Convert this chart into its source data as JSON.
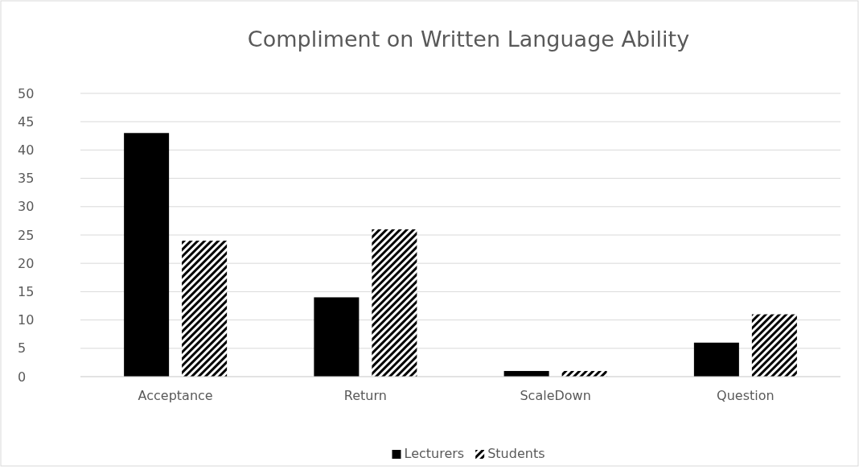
{
  "chart_data": {
    "type": "bar",
    "title": "Compliment on Written Language Ability",
    "categories": [
      "Acceptance",
      "Return",
      "ScaleDown",
      "Question"
    ],
    "series": [
      {
        "name": "Lecturers",
        "color": "#000000",
        "values": [
          43,
          14,
          1,
          6
        ]
      },
      {
        "name": "Students",
        "color": "#000000",
        "values": [
          24,
          26,
          1,
          11
        ]
      }
    ],
    "ylim": [
      0,
      50
    ],
    "yticks": [
      0,
      5,
      10,
      15,
      20,
      25,
      30,
      35,
      40,
      45,
      50
    ],
    "grid": "y",
    "legend": "bottom"
  }
}
